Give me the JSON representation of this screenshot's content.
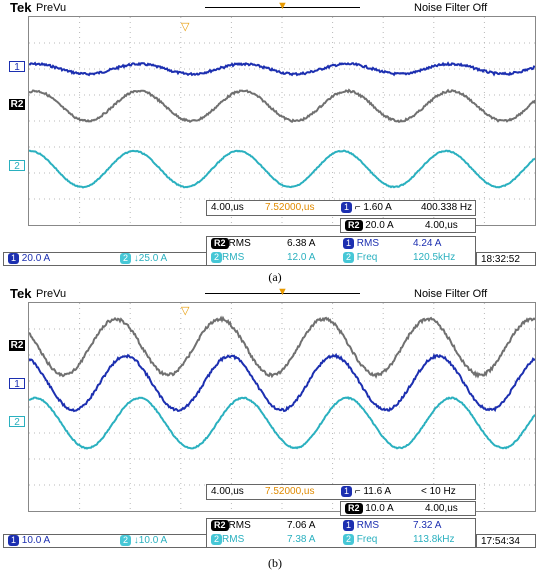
{
  "panels": [
    {
      "caption": "(a)",
      "brand": "Tek",
      "mode": "PreVu",
      "noise_filter": "Noise Filter Off",
      "trigger_glyph": "▼",
      "marker_glyph": "▽",
      "channels": {
        "ch1": "1",
        "r2": "R2",
        "ch2": "2"
      },
      "top_readout": {
        "timebase": "4.00,us",
        "delay": "7.52000,us",
        "trig_ch": "1",
        "trig_level": "1.60 A",
        "freq": "400.338 Hz"
      },
      "ref_readout": {
        "ch": "R2",
        "scale": "20.0 A",
        "time": "4.00,us"
      },
      "measurements": [
        {
          "ch": "R2",
          "name": "RMS",
          "value": "6.38 A"
        },
        {
          "ch": "1",
          "name": "RMS",
          "value": "4.24 A"
        },
        {
          "ch": "2",
          "name": "RMS",
          "value": "12.0 A"
        },
        {
          "ch": "2",
          "name": "Freq",
          "value": "120.5kHz"
        }
      ],
      "bottom": {
        "ch1": "1",
        "ch1_scale": "20.0 A",
        "ch2": "2",
        "ch2_scale": "↓25.0 A"
      },
      "clock": "18:32:52",
      "levels": {
        "ch1_amp": 5,
        "r2_amp": 15,
        "ch2_amp": 18
      }
    },
    {
      "caption": "(b)",
      "brand": "Tek",
      "mode": "PreVu",
      "noise_filter": "Noise Filter Off",
      "trigger_glyph": "▼",
      "marker_glyph": "▽",
      "channels": {
        "ch1": "1",
        "r2": "R2",
        "ch2": "2"
      },
      "top_readout": {
        "timebase": "4.00,us",
        "delay": "7.52000,us",
        "trig_ch": "1",
        "trig_level": "11.6 A",
        "freq": "< 10 Hz"
      },
      "ref_readout": {
        "ch": "R2",
        "scale": "10.0 A",
        "time": "4.00,us"
      },
      "measurements": [
        {
          "ch": "R2",
          "name": "RMS",
          "value": "7.06 A"
        },
        {
          "ch": "1",
          "name": "RMS",
          "value": "7.32 A"
        },
        {
          "ch": "2",
          "name": "RMS",
          "value": "7.38 A"
        },
        {
          "ch": "2",
          "name": "Freq",
          "value": "113.8kHz"
        }
      ],
      "bottom": {
        "ch1": "1",
        "ch1_scale": "10.0 A",
        "ch2": "2",
        "ch2_scale": "↓10.0 A"
      },
      "clock": "17:54:34",
      "levels": {
        "ch1_amp": 27,
        "r2_amp": 28,
        "ch2_amp": 25
      }
    }
  ],
  "colors": {
    "ch1": "#1c2fb0",
    "r2": "#707070",
    "ch2": "#2ab0bf",
    "trigger": "#e89a00"
  }
}
